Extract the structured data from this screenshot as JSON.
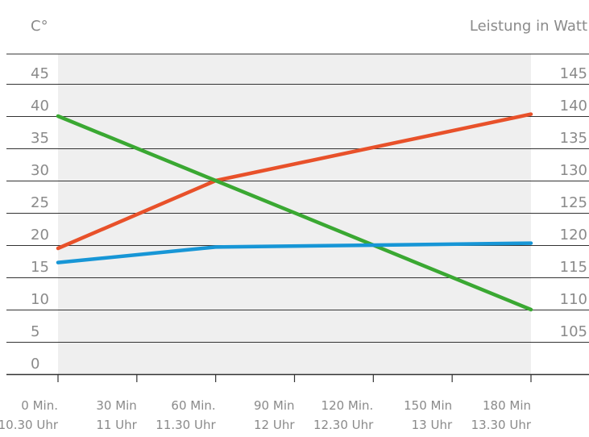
{
  "chart_data": {
    "type": "line",
    "left_axis_unit": "C°",
    "right_axis_unit": "Leistung in Watt",
    "y_left": {
      "ticks": [
        0,
        5,
        10,
        15,
        20,
        25,
        30,
        35,
        40,
        45
      ],
      "range": [
        0,
        50
      ]
    },
    "y_right": {
      "ticks": [
        105,
        110,
        115,
        120,
        125,
        130,
        135,
        140,
        145
      ],
      "range": [
        100,
        150
      ]
    },
    "x": {
      "values": [
        0,
        30,
        60,
        90,
        120,
        150,
        180
      ],
      "labels_line1": [
        "0 Min.",
        "30 Min",
        "60 Min.",
        "90 Min",
        "120 Min.",
        "150 Min",
        "180 Min"
      ],
      "labels_line2": [
        "10.30 Uhr",
        "11 Uhr",
        "11.30 Uhr",
        "12 Uhr",
        "12.30 Uhr",
        "13 Uhr",
        "13.30 Uhr"
      ]
    },
    "series": [
      {
        "color": "#e8512a",
        "points": [
          [
            0,
            19.5
          ],
          [
            60,
            30
          ],
          [
            180,
            40.3
          ]
        ]
      },
      {
        "color": "#3aa832",
        "points": [
          [
            0,
            40
          ],
          [
            60,
            30
          ],
          [
            180,
            10
          ]
        ]
      },
      {
        "color": "#1796d6",
        "points": [
          [
            0,
            17.3
          ],
          [
            60,
            19.7
          ],
          [
            180,
            20.3
          ]
        ]
      }
    ],
    "grid": true,
    "shaded_plot_area": true
  }
}
